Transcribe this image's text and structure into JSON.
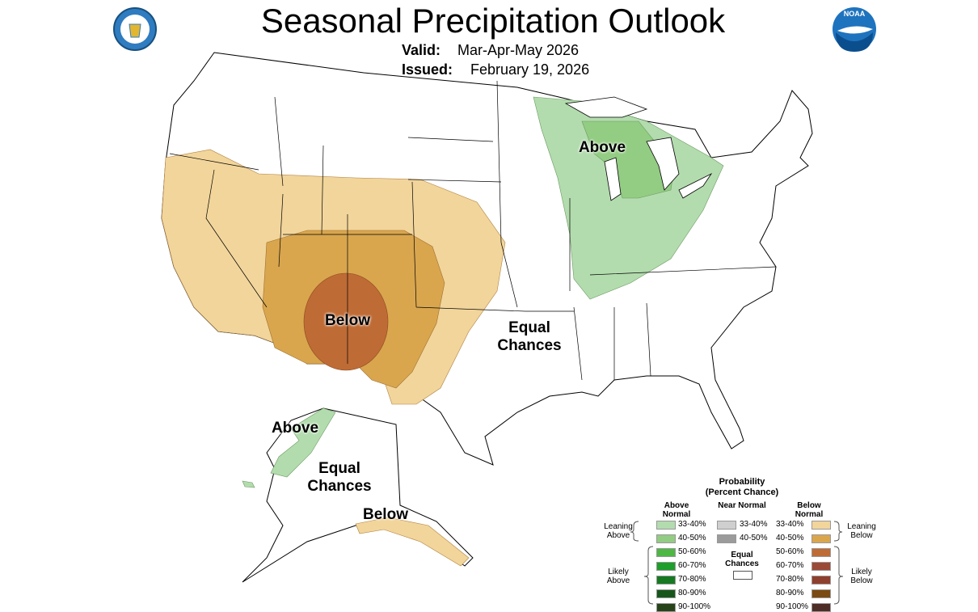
{
  "header": {
    "title": "Seasonal Precipitation Outlook",
    "valid_label": "Valid:",
    "valid_value": "Mar-Apr-May 2026",
    "issued_label": "Issued:",
    "issued_value": "February 19, 2026",
    "logo_text": "NOAA"
  },
  "map_labels": [
    "Above",
    "Below",
    "Equal Chances",
    "Above",
    "Equal Chances",
    "Below"
  ],
  "legend": {
    "title": "Probability",
    "subtitle": "(Percent Chance)",
    "columns": [
      {
        "header": "Above Normal",
        "items": [
          {
            "label": "33-40%",
            "color": "#b3dcae"
          },
          {
            "label": "40-50%",
            "color": "#93cc83"
          },
          {
            "label": "50-60%",
            "color": "#4db843"
          },
          {
            "label": "60-70%",
            "color": "#1e9e2a"
          },
          {
            "label": "70-80%",
            "color": "#167a22"
          },
          {
            "label": "80-90%",
            "color": "#17561b"
          },
          {
            "label": "90-100%",
            "color": "#27431a"
          }
        ]
      },
      {
        "header": "Near Normal",
        "items": [
          {
            "label": "33-40%",
            "color": "#cfcfcf"
          },
          {
            "label": "40-50%",
            "color": "#9b9b9b"
          }
        ]
      },
      {
        "header": "Below Normal",
        "items": [
          {
            "label": "33-40%",
            "color": "#f2d59b"
          },
          {
            "label": "40-50%",
            "color": "#d9a64e"
          },
          {
            "label": "50-60%",
            "color": "#bf6b35"
          },
          {
            "label": "60-70%",
            "color": "#9b4a37"
          },
          {
            "label": "70-80%",
            "color": "#8f3f2e"
          },
          {
            "label": "80-90%",
            "color": "#7a4a12"
          },
          {
            "label": "90-100%",
            "color": "#4d2d25"
          }
        ]
      }
    ],
    "equal_chances": "Equal Chances",
    "groups": {
      "leaning_above": "Leaning Above",
      "likely_above": "Likely Above",
      "leaning_below": "Leaning Below",
      "likely_below": "Likely Below"
    }
  }
}
